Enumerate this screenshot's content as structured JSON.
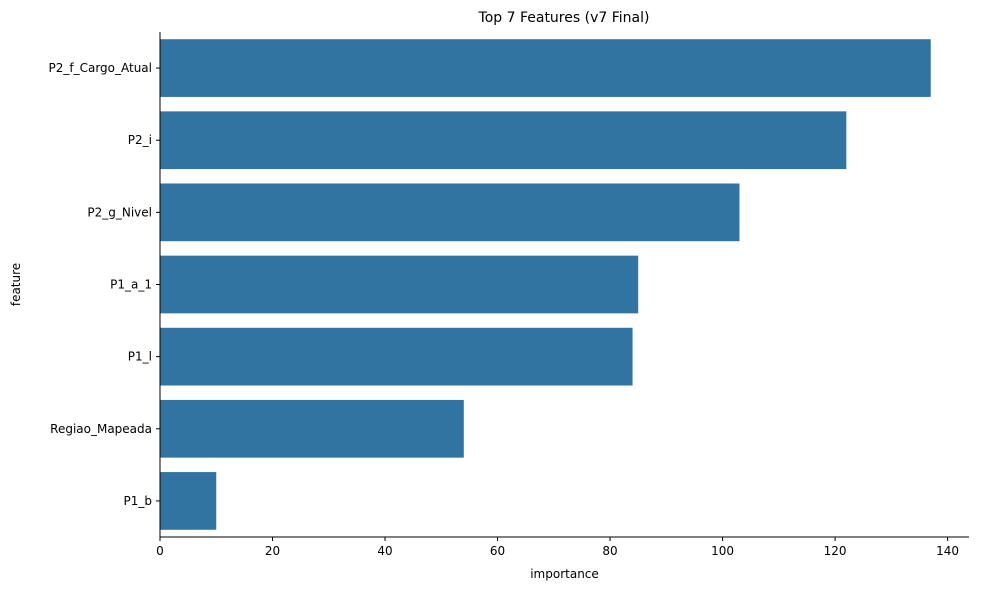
{
  "chart_data": {
    "type": "bar",
    "orientation": "horizontal",
    "title": "Top 7 Features (v7 Final)",
    "xlabel": "importance",
    "ylabel": "feature",
    "categories": [
      "P2_f_Cargo_Atual",
      "P2_i",
      "P2_g_Nivel",
      "P1_a_1",
      "P1_l",
      "Regiao_Mapeada",
      "P1_b"
    ],
    "values": [
      137,
      122,
      103,
      85,
      84,
      54,
      10
    ],
    "xlim": [
      0,
      143.8
    ],
    "xticks": [
      0,
      20,
      40,
      60,
      80,
      100,
      120,
      140
    ],
    "grid": false,
    "bar_color": "#3274a1"
  }
}
